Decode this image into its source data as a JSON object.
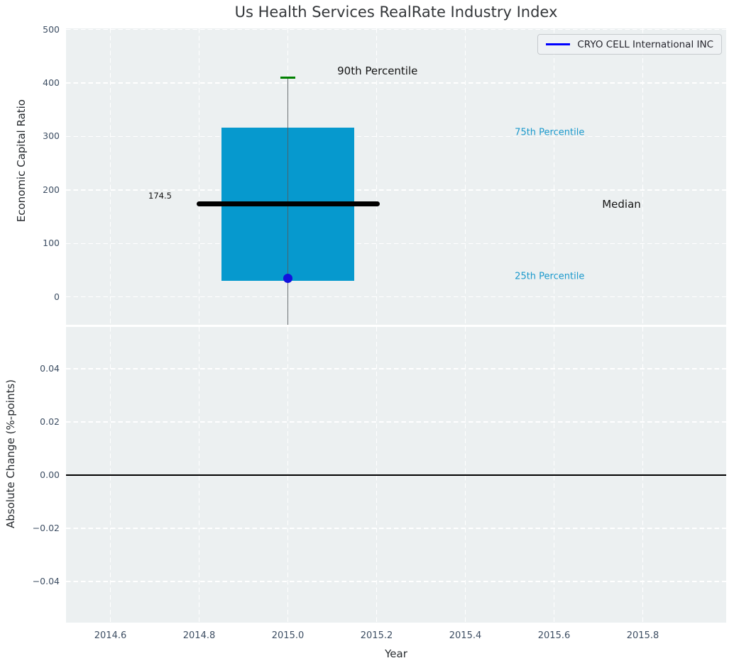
{
  "title": "Us Health Services RealRate Industry Index",
  "colors": {
    "figure_bg": "#ffffff",
    "plot_bg": "#ecf0f1",
    "grid": "#ffffff",
    "tick_label": "#3d4e63",
    "box_fill": "#0699ce",
    "median_line": "#000000",
    "whisker": "#555a5e",
    "p90_cap": "#008000",
    "company_line": "#0000ff",
    "company_dot": "#1212dd",
    "annotation_blue": "#1b99cc",
    "annotation_black": "#141414",
    "zero_line": "#000000"
  },
  "chart_data": [
    {
      "type": "boxplot",
      "title": "Us Health Services RealRate Industry Index",
      "xlabel": "",
      "ylabel": "Economic Capital Ratio",
      "grid": true,
      "legend": {
        "label": "CRYO CELL International INC",
        "position": "upper right",
        "line_color": "#0000ff"
      },
      "xlim": [
        2014.5,
        2015.988
      ],
      "ylim": [
        -52,
        502
      ],
      "yticks": [
        0,
        100,
        200,
        300,
        400,
        500
      ],
      "ytick_labels": [
        "0",
        "100",
        "200",
        "300",
        "400",
        "500"
      ],
      "xticks": [
        2014.6,
        2014.8,
        2015.0,
        2015.2,
        2015.4,
        2015.6,
        2015.8
      ],
      "box": {
        "x": 2015.0,
        "box_left": 2014.85,
        "box_right": 2015.15,
        "p90": 410,
        "p75": 317,
        "median": 174.5,
        "p25": 30,
        "median_line_span": [
          2014.795,
          2015.207
        ],
        "whisker_extends_below_view": true
      },
      "company_point": {
        "name": "CRYO CELL International INC",
        "x": 2015.0,
        "y": 35
      },
      "annotations": [
        {
          "text": "90th Percentile",
          "x": 2015.202,
          "y": 422,
          "size": 15,
          "color": "#141414"
        },
        {
          "text": "174.5",
          "x": 2014.712,
          "y": 189,
          "size": 11.5,
          "color": "#141414"
        },
        {
          "text": "75th Percentile",
          "x": 2015.59,
          "y": 307,
          "size": 13,
          "color": "#1b99cc"
        },
        {
          "text": "Median",
          "x": 2015.752,
          "y": 173,
          "size": 15,
          "color": "#141414"
        },
        {
          "text": "25th Percentile",
          "x": 2015.59,
          "y": 38,
          "size": 13,
          "color": "#1b99cc"
        }
      ]
    },
    {
      "type": "line",
      "xlabel": "Year",
      "ylabel": "Absolute Change (%-points)",
      "grid": true,
      "xlim": [
        2014.5,
        2015.988
      ],
      "ylim": [
        -0.0555,
        0.0557
      ],
      "yticks": [
        0.04,
        0.02,
        0.0,
        -0.02,
        -0.04
      ],
      "ytick_labels": [
        "0.04",
        "0.02",
        "0.00",
        "−0.02",
        "−0.04"
      ],
      "xticks": [
        2014.6,
        2014.8,
        2015.0,
        2015.2,
        2015.4,
        2015.6,
        2015.8
      ],
      "xtick_labels": [
        "2014.6",
        "2014.8",
        "2015.0",
        "2015.2",
        "2015.4",
        "2015.6",
        "2015.8"
      ],
      "zero_line_y": 0.0,
      "series": []
    }
  ]
}
